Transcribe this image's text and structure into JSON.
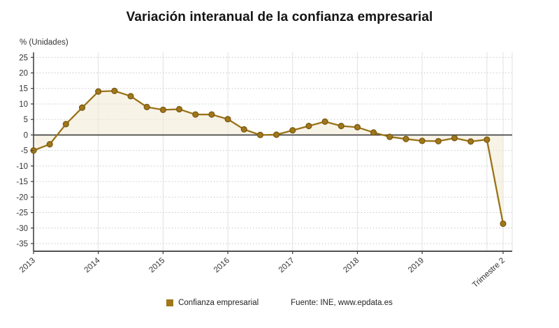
{
  "title": "Variación interanual de la confianza empresarial",
  "chart_data": {
    "type": "line",
    "title": "Variación interanual de la confianza empresarial",
    "unit_label": "% (Unidades)",
    "series_name": "Confianza empresarial",
    "source": "Fuente: INE, www.epdata.es",
    "categories": [
      "2013 T1",
      "2013 T2",
      "2013 T3",
      "2013 T4",
      "2014 T1",
      "2014 T2",
      "2014 T3",
      "2014 T4",
      "2015 T1",
      "2015 T2",
      "2015 T3",
      "2015 T4",
      "2016 T1",
      "2016 T2",
      "2016 T3",
      "2016 T4",
      "2017 T1",
      "2017 T2",
      "2017 T3",
      "2017 T4",
      "2018 T1",
      "2018 T2",
      "2018 T3",
      "2018 T4",
      "2019 T1",
      "2019 T2",
      "2019 T3",
      "2019 T4",
      "2020 T1",
      "2020 T2"
    ],
    "values": [
      -5.0,
      -3.0,
      3.5,
      8.8,
      14.0,
      14.2,
      12.5,
      9.0,
      8.1,
      8.3,
      6.6,
      6.6,
      5.1,
      1.8,
      0.0,
      0.1,
      1.5,
      2.9,
      4.3,
      2.9,
      2.5,
      0.8,
      -0.6,
      -1.3,
      -1.9,
      -2.0,
      -1.0,
      -2.1,
      -1.5,
      -28.6
    ],
    "x_ticks": [
      {
        "index": 0,
        "label": "2013"
      },
      {
        "index": 4,
        "label": "2014"
      },
      {
        "index": 8,
        "label": "2015"
      },
      {
        "index": 12,
        "label": "2016"
      },
      {
        "index": 16,
        "label": "2017"
      },
      {
        "index": 20,
        "label": "2018"
      },
      {
        "index": 24,
        "label": "2019"
      },
      {
        "index": 29,
        "label": "Trimestre 2"
      }
    ],
    "extra_gridline_indices": [
      28
    ],
    "ylim": [
      -35,
      25
    ],
    "y_tick_step": 5,
    "grid": true,
    "legend_position": "bottom",
    "colors": {
      "line": "#997317",
      "marker": "#a1771c",
      "marker_edge": "#7d5c10",
      "fill": "rgba(243,233,211,0.55)",
      "zero_line": "#3a3a3a",
      "axis": "#3a3a3a",
      "grid": "#c6c6c6",
      "vgrid": "#e0e0e0",
      "text": "#333333"
    }
  },
  "legend": {
    "series_label": "Confianza empresarial",
    "source_label": "Fuente: INE, www.epdata.es"
  }
}
